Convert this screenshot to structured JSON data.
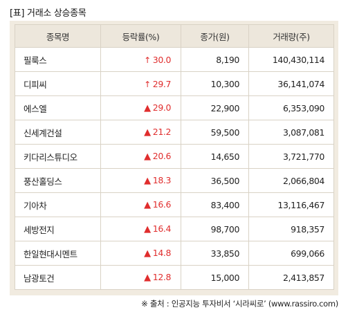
{
  "title": "[표] 거래소 상승종목",
  "table": {
    "headers": [
      "종목명",
      "등락률(%)",
      "종가(원)",
      "거래량(주)"
    ],
    "rows": [
      {
        "name": "필룩스",
        "marker": "↑",
        "change": "30.0",
        "price": "8,190",
        "volume": "140,430,114"
      },
      {
        "name": "디피씨",
        "marker": "↑",
        "change": "29.7",
        "price": "10,300",
        "volume": "36,141,074"
      },
      {
        "name": "에스엘",
        "marker": "▲",
        "change": "29.0",
        "price": "22,900",
        "volume": "6,353,090"
      },
      {
        "name": "신세계건설",
        "marker": "▲",
        "change": "21.2",
        "price": "59,500",
        "volume": "3,087,081"
      },
      {
        "name": "키다리스튜디오",
        "marker": "▲",
        "change": "20.6",
        "price": "14,650",
        "volume": "3,721,770"
      },
      {
        "name": "풍산홀딩스",
        "marker": "▲",
        "change": "18.3",
        "price": "36,500",
        "volume": "2,066,804"
      },
      {
        "name": "기아차",
        "marker": "▲",
        "change": "16.6",
        "price": "83,400",
        "volume": "13,116,467"
      },
      {
        "name": "세방전지",
        "marker": "▲",
        "change": "16.4",
        "price": "98,700",
        "volume": "918,357"
      },
      {
        "name": "한일현대시멘트",
        "marker": "▲",
        "change": "14.8",
        "price": "33,850",
        "volume": "699,066"
      },
      {
        "name": "남광토건",
        "marker": "▲",
        "change": "12.8",
        "price": "15,000",
        "volume": "2,413,857"
      }
    ]
  },
  "source": "※ 출처 : 인공지능 투자비서 ‘시라씨로’ (www.rassiro.com)",
  "colors": {
    "rise": "#e02d2d",
    "header_bg": "#ede7dc",
    "frame_bg": "#f1ebe0",
    "border": "#d9d2c5"
  }
}
